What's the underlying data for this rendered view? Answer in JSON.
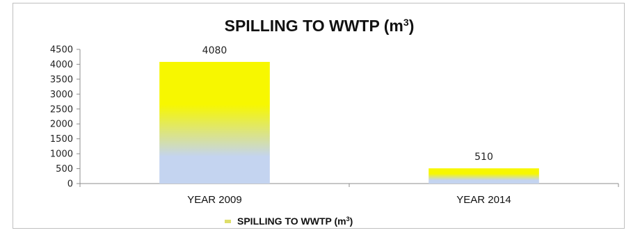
{
  "chart_data": {
    "type": "bar",
    "title_main": "SPILLING TO WWTP (m",
    "title_sup": "3",
    "title_close": ")",
    "categories": [
      "YEAR 2009",
      "YEAR 2014"
    ],
    "series": [
      {
        "name_main": "SPILLING TO WWTP (m",
        "name_sup": "3",
        "name_close": ")",
        "values": [
          4080,
          510
        ]
      }
    ],
    "data_labels": [
      "4080",
      "510"
    ],
    "ylim": [
      0,
      4500
    ],
    "yticks": [
      0,
      500,
      1000,
      1500,
      2000,
      2500,
      3000,
      3500,
      4000,
      4500
    ],
    "ytick_labels": [
      "0",
      "500",
      "1000",
      "1500",
      "2000",
      "2500",
      "3000",
      "3500",
      "4000",
      "4500"
    ],
    "grid": false,
    "legend_position": "bottom",
    "colors": {
      "bar_top": "#f7f700",
      "bar_bottom": "#c4d4f0",
      "axis": "#8c8c8c",
      "legend_swatch": "#dede6a"
    }
  }
}
